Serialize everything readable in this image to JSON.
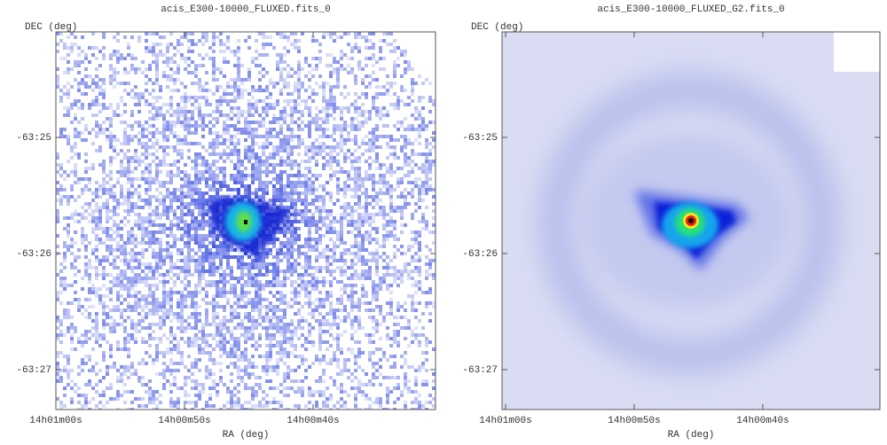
{
  "panels": [
    {
      "title": "acis_E300-10000_FLUXED.fits_0",
      "y_label": "DEC (deg)",
      "x_label": "RA (deg)",
      "y_ticks": [
        "-63:25",
        "-63:26",
        "-63:27"
      ],
      "x_ticks": [
        "14h01m00s",
        "14h00m50s",
        "14h00m40s"
      ]
    },
    {
      "title": "acis_E300-10000_FLUXED_G2.fits_0",
      "y_label": "DEC (deg)",
      "x_label": "RA (deg)",
      "y_ticks": [
        "-63:25",
        "-63:26",
        "-63:27"
      ],
      "x_ticks": [
        "14h01m00s",
        "14h00m50s",
        "14h00m40s"
      ]
    }
  ]
}
